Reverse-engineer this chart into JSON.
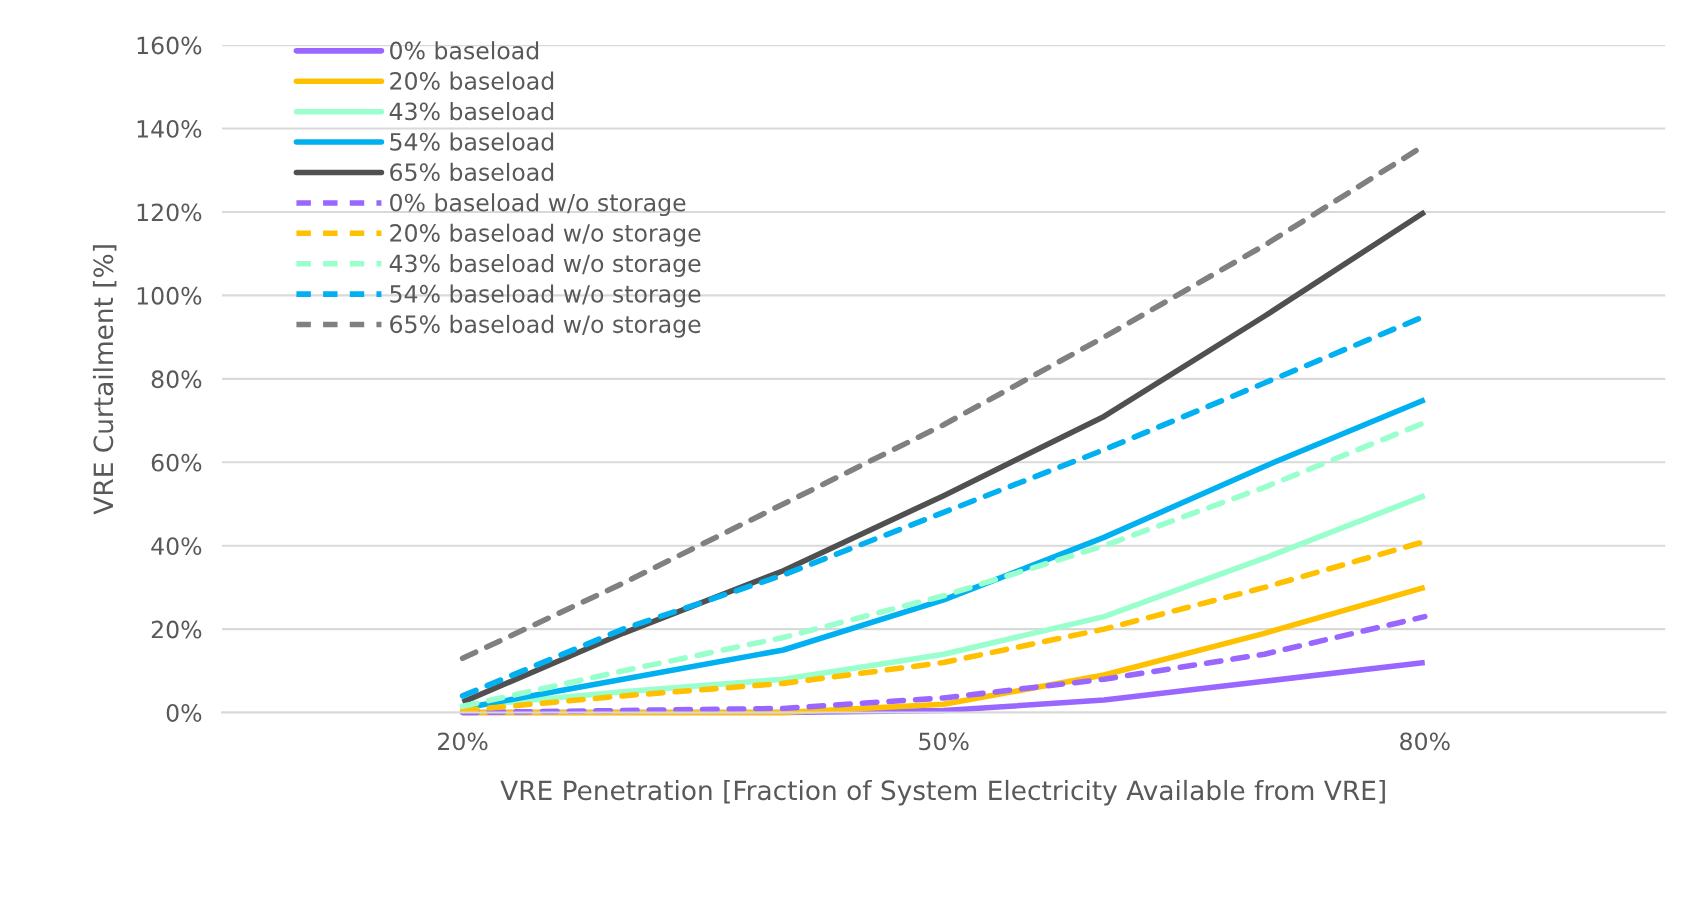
{
  "chart_data": {
    "type": "line",
    "xlabel": "VRE Penetration [Fraction of System Electricity Available from VRE]",
    "ylabel": "VRE Curtailment [%]",
    "x": [
      20,
      30,
      40,
      50,
      60,
      70,
      80
    ],
    "xlim": [
      5,
      95
    ],
    "xticks": [
      {
        "value": 20,
        "label": "20%"
      },
      {
        "value": 50,
        "label": "50%"
      },
      {
        "value": 80,
        "label": "80%"
      }
    ],
    "ylim": [
      0,
      160
    ],
    "yticks": [
      {
        "value": 0,
        "label": "0%"
      },
      {
        "value": 20,
        "label": "20%"
      },
      {
        "value": 40,
        "label": "40%"
      },
      {
        "value": 60,
        "label": "60%"
      },
      {
        "value": 80,
        "label": "80%"
      },
      {
        "value": 100,
        "label": "100%"
      },
      {
        "value": 120,
        "label": "120%"
      },
      {
        "value": 140,
        "label": "140%"
      },
      {
        "value": 160,
        "label": "160%"
      }
    ],
    "grid": "y",
    "legend": "top left",
    "marker": "none",
    "series": [
      {
        "name": "0% baseload",
        "color": "#9966ff",
        "line_style": "solid",
        "values": [
          0,
          0,
          0,
          0.5,
          3,
          7.5,
          12
        ]
      },
      {
        "name": "20% baseload",
        "color": "#ffc000",
        "line_style": "solid",
        "values": [
          0,
          0,
          0,
          2,
          9,
          19,
          30
        ]
      },
      {
        "name": "43% baseload",
        "color": "#99ffcc",
        "line_style": "solid",
        "values": [
          1.5,
          5,
          8,
          14,
          23,
          37,
          52
        ]
      },
      {
        "name": "54% baseload",
        "color": "#00b0f0",
        "line_style": "solid",
        "values": [
          1,
          8,
          15,
          27,
          42,
          59,
          75
        ]
      },
      {
        "name": "65% baseload",
        "color": "#505050",
        "line_style": "solid",
        "values": [
          2.5,
          19,
          34,
          52,
          71,
          95,
          120
        ]
      },
      {
        "name": "0% baseload w/o storage",
        "color": "#9966ff",
        "line_style": "dashed",
        "values": [
          0,
          0.5,
          1,
          3.5,
          8,
          14,
          23
        ]
      },
      {
        "name": "20% baseload w/o storage",
        "color": "#ffc000",
        "line_style": "dashed",
        "values": [
          0.5,
          4,
          7,
          12,
          20,
          30,
          41
        ]
      },
      {
        "name": "43% baseload w/o storage",
        "color": "#99ffcc",
        "line_style": "dashed",
        "values": [
          1.5,
          10,
          18,
          28,
          40,
          54,
          69.5
        ]
      },
      {
        "name": "54% baseload w/o storage",
        "color": "#00b0f0",
        "line_style": "dashed",
        "values": [
          4,
          20,
          33,
          48,
          63,
          79,
          95
        ]
      },
      {
        "name": "65% baseload w/o storage",
        "color": "#808080",
        "line_style": "dashed",
        "values": [
          13,
          31,
          50,
          69,
          90,
          112,
          136
        ]
      }
    ]
  }
}
